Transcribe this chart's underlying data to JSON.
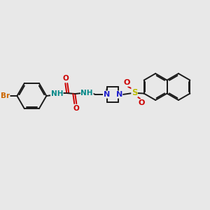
{
  "background_color": "#e8e8e8",
  "bond_color": "#1a1a1a",
  "atom_colors": {
    "N": "#2222cc",
    "O": "#cc0000",
    "Br": "#cc6600",
    "S": "#bbbb00",
    "H": "#008888",
    "C": "#1a1a1a"
  },
  "figsize": [
    3.0,
    3.0
  ],
  "dpi": 100
}
